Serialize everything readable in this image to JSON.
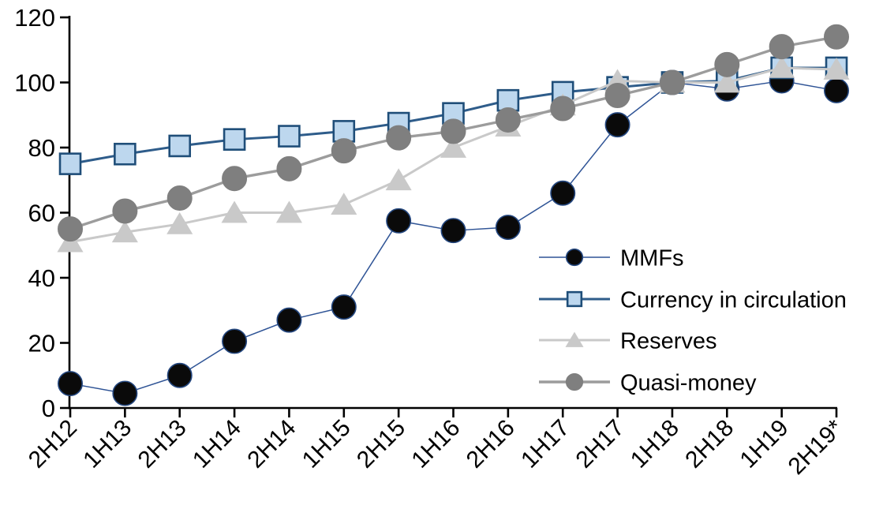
{
  "chart_data": {
    "type": "line",
    "title": "",
    "xlabel": "",
    "ylabel": "",
    "grid": false,
    "legend_position": "inside-right",
    "ylim": [
      0,
      120
    ],
    "ytick_step": 20,
    "yticks": [
      "0",
      "20",
      "40",
      "60",
      "80",
      "100",
      "120"
    ],
    "categories": [
      "2H12",
      "1H13",
      "2H13",
      "1H14",
      "2H14",
      "1H15",
      "2H15",
      "1H16",
      "2H16",
      "1H17",
      "2H17",
      "1H18",
      "2H18",
      "1H19",
      "2H19*"
    ],
    "series": [
      {
        "name": "MMFs",
        "marker": "circle",
        "marker_fill": "#0a0a0a",
        "marker_stroke": "#24477f",
        "line_color": "#2f5496",
        "values": [
          7.5,
          4.5,
          10,
          20.5,
          27,
          31,
          57.5,
          54.5,
          55.5,
          66,
          87,
          100,
          98,
          100.5,
          97.5
        ]
      },
      {
        "name": "Currency in circulation",
        "marker": "square",
        "marker_fill": "#bdd7ee",
        "marker_stroke": "#1f4e79",
        "line_color": "#2e5c8a",
        "values": [
          75,
          78,
          80.5,
          82.5,
          83.5,
          85,
          87.5,
          90.5,
          94.5,
          97,
          98.5,
          100,
          100.5,
          104.5,
          104.5
        ]
      },
      {
        "name": "Reserves",
        "marker": "triangle",
        "marker_fill": "#c9c9c9",
        "marker_stroke": "#c9c9c9",
        "line_color": "#c9c9c9",
        "values": [
          51,
          54,
          56.5,
          60,
          60,
          62.5,
          70,
          80,
          86.5,
          93,
          100.5,
          100,
          100,
          104.5,
          104
        ]
      },
      {
        "name": "Quasi-money",
        "marker": "circle",
        "marker_fill": "#7f7f7f",
        "marker_stroke": "#7f7f7f",
        "line_color": "#9c9c9c",
        "values": [
          55,
          60.5,
          64.5,
          70.5,
          73.5,
          79,
          83,
          85,
          88.5,
          92,
          96,
          100,
          105.5,
          111,
          114
        ]
      }
    ]
  }
}
